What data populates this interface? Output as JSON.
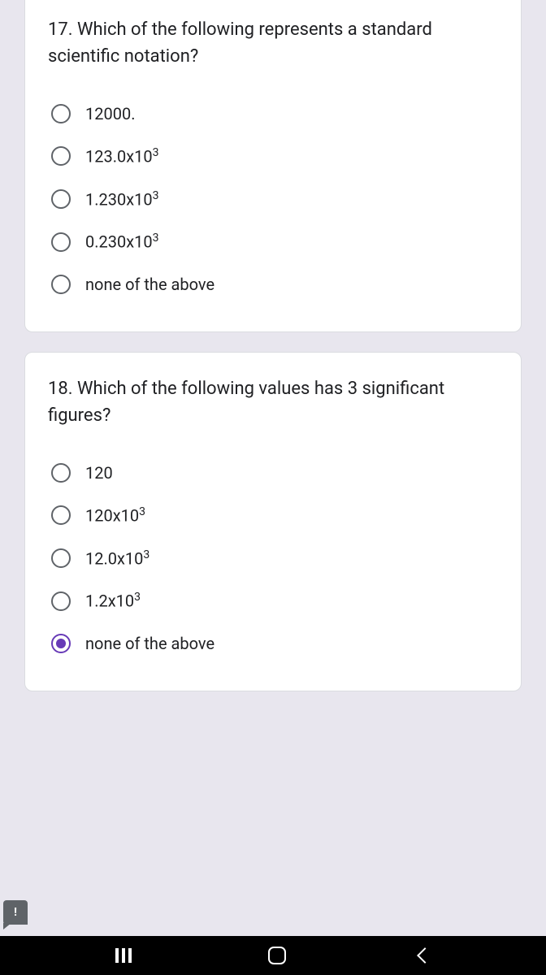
{
  "questions": [
    {
      "number": "17",
      "text": "17. Which of the following represents a standard scientific notation?",
      "options": [
        {
          "label": "12000.",
          "selected": false,
          "hasSuper": false
        },
        {
          "label": "123.0x10",
          "super": "3",
          "selected": false,
          "hasSuper": true
        },
        {
          "label": "1.230x10",
          "super": "3",
          "selected": false,
          "hasSuper": true
        },
        {
          "label": "0.230x10",
          "super": "3",
          "selected": false,
          "hasSuper": true
        },
        {
          "label": "none of the above",
          "selected": false,
          "hasSuper": false
        }
      ]
    },
    {
      "number": "18",
      "text": "18. Which of the following values has 3 significant figures?",
      "options": [
        {
          "label": "120",
          "selected": false,
          "hasSuper": false
        },
        {
          "label": "120x10",
          "super": "3",
          "selected": false,
          "hasSuper": true
        },
        {
          "label": "12.0x10",
          "super": "3",
          "selected": false,
          "hasSuper": true
        },
        {
          "label": "1.2x10",
          "super": "3",
          "selected": false,
          "hasSuper": true
        },
        {
          "label": "none of the above",
          "selected": true,
          "hasSuper": false
        }
      ]
    }
  ],
  "feedback_icon": "!",
  "colors": {
    "background": "#e8e6ee",
    "card_bg": "#ffffff",
    "card_border": "#dadce0",
    "text_primary": "#202124",
    "radio_border": "#5f6368",
    "radio_selected": "#673ab7",
    "nav_bg": "#000000",
    "nav_icon": "#ffffff",
    "feedback_bg": "#5f6368"
  }
}
